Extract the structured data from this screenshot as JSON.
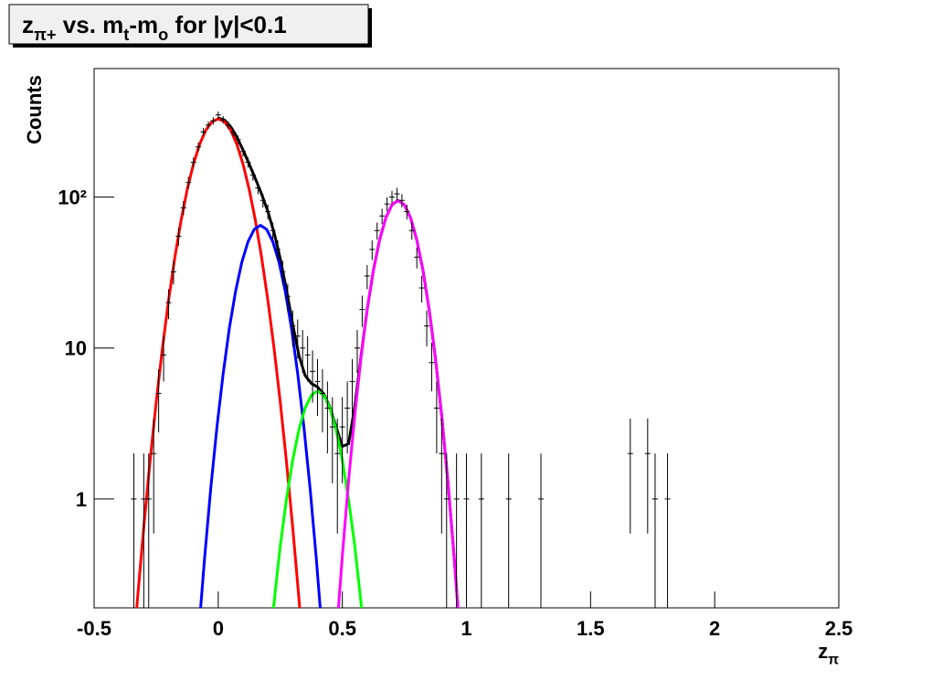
{
  "chart_data": {
    "type": "scatter",
    "title": [
      "z",
      "π+",
      " vs. m",
      "t",
      "-m",
      "o",
      " for |y|<0.1"
    ],
    "x_label": [
      "z",
      "π"
    ],
    "y_label": "Counts",
    "xlim": [
      -0.5,
      2.5
    ],
    "ylim": [
      0.19,
      710
    ],
    "log_y": true,
    "xticks": [
      -0.5,
      0,
      0.5,
      1,
      1.5,
      2,
      2.5
    ],
    "yticks": [
      1,
      10,
      {
        "value": 100,
        "label": "10²"
      }
    ],
    "color": "#000000",
    "x": [
      -0.34,
      -0.3,
      -0.28,
      -0.26,
      -0.24,
      -0.22,
      -0.2,
      -0.18,
      -0.16,
      -0.14,
      -0.12,
      -0.1,
      -0.08,
      -0.06,
      -0.04,
      -0.02,
      0,
      0.02,
      0.04,
      0.06,
      0.08,
      0.1,
      0.12,
      0.14,
      0.16,
      0.18,
      0.2,
      0.22,
      0.24,
      0.26,
      0.28,
      0.3,
      0.32,
      0.34,
      0.36,
      0.38,
      0.4,
      0.42,
      0.44,
      0.46,
      0.48,
      0.5,
      0.52,
      0.54,
      0.56,
      0.58,
      0.6,
      0.62,
      0.64,
      0.66,
      0.68,
      0.7,
      0.72,
      0.74,
      0.76,
      0.78,
      0.8,
      0.82,
      0.84,
      0.86,
      0.88,
      0.9,
      0.92,
      0.96,
      1,
      1.06,
      1.17,
      1.3,
      1.66,
      1.73,
      1.76,
      1.81
    ],
    "values": [
      1,
      1,
      1,
      2,
      5,
      9,
      20,
      32,
      55,
      85,
      125,
      170,
      215,
      270,
      300,
      320,
      350,
      325,
      300,
      270,
      240,
      200,
      170,
      140,
      115,
      95,
      80,
      60,
      45,
      32,
      22,
      14,
      12,
      10,
      9,
      7,
      6,
      5,
      4,
      3,
      2,
      3,
      4,
      6,
      10,
      18,
      30,
      45,
      60,
      75,
      90,
      100,
      105,
      95,
      80,
      60,
      40,
      25,
      14,
      8,
      4,
      2,
      1,
      1,
      1,
      1,
      1,
      1,
      2,
      2,
      1,
      1
    ],
    "errors": [
      1,
      1,
      1,
      1.41,
      2.24,
      3,
      4.47,
      5.66,
      7.42,
      9.22,
      11.18,
      13.04,
      14.66,
      16.43,
      17.32,
      17.89,
      18.71,
      18.03,
      17.32,
      16.43,
      15.49,
      14.14,
      13.04,
      11.83,
      10.72,
      9.75,
      8.94,
      7.75,
      6.71,
      5.66,
      4.69,
      3.74,
      3.46,
      3.16,
      3,
      2.65,
      2.45,
      2.24,
      2,
      1.73,
      1.41,
      1.73,
      2,
      2.45,
      3.16,
      4.24,
      5.48,
      6.71,
      7.75,
      8.66,
      9.49,
      10,
      10.25,
      9.75,
      8.94,
      7.75,
      6.32,
      5,
      3.74,
      2.83,
      2,
      1.41,
      1,
      1,
      1,
      1,
      1,
      1,
      1.41,
      1.41,
      1,
      1
    ],
    "fits": [
      {
        "color": "#000000",
        "x": [
          0,
          0.025,
          0.05,
          0.075,
          0.1,
          0.125,
          0.15,
          0.175,
          0.2,
          0.225,
          0.25,
          0.275,
          0.3,
          0.325,
          0.35,
          0.375,
          0.4,
          0.425,
          0.45,
          0.475,
          0.5,
          0.525,
          0.55,
          0.575,
          0.6,
          0.625,
          0.65,
          0.675,
          0.7,
          0.725,
          0.75,
          0.775,
          0.8,
          0.825,
          0.85,
          0.875,
          0.9,
          0.925,
          0.95,
          0.975
        ],
        "values": [
          333.6,
          323.9,
          292.9,
          249.9,
          205.0,
          165.1,
          132.0,
          104.4,
          80.2,
          58.1,
          39.1,
          24.3,
          14.4,
          8.94,
          6.59,
          5.83,
          5.52,
          4.97,
          4.05,
          3.0,
          2.23,
          2.32,
          4.08,
          8.78,
          17.98,
          32.6,
          52.0,
          72.7,
          88.9,
          95,
          88.9,
          72.7,
          52.0,
          32.6,
          17.9,
          8.57,
          3.59,
          1.32,
          0.42,
          0.119
        ]
      },
      {
        "color": "#ff0000",
        "x": [
          -0.35,
          -0.325,
          -0.3,
          -0.275,
          -0.25,
          -0.225,
          -0.2,
          -0.175,
          -0.15,
          -0.125,
          -0.1,
          -0.075,
          -0.05,
          -0.025,
          0,
          0.025,
          0.05,
          0.075,
          0.1,
          0.125,
          0.15,
          0.175,
          0.2,
          0.225,
          0.25,
          0.275,
          0.3,
          0.325,
          0.35
        ],
        "values": [
          0.069,
          0.22,
          0.65,
          1.76,
          4.37,
          9.94,
          20.7,
          39.6,
          69.6,
          112.0,
          165.2,
          223.6,
          277.6,
          316.0,
          330,
          316.0,
          277.6,
          223.6,
          165.2,
          112.0,
          69.6,
          39.6,
          20.7,
          9.94,
          4.37,
          1.76,
          0.65,
          0.22,
          0.069
        ]
      },
      {
        "color": "#0000ff",
        "x": [
          -0.08,
          -0.055,
          -0.03,
          -0.005,
          0.02,
          0.045,
          0.07,
          0.095,
          0.12,
          0.145,
          0.17,
          0.195,
          0.22,
          0.245,
          0.27,
          0.295,
          0.32,
          0.345,
          0.37,
          0.395,
          0.42
        ],
        "values": [
          0.123,
          0.405,
          1.18,
          3.01,
          6.8,
          13.6,
          23.8,
          37.0,
          50.6,
          61.1,
          65,
          61.1,
          50.6,
          37.0,
          23.8,
          13.6,
          6.8,
          3.01,
          1.18,
          0.405,
          0.123
        ]
      },
      {
        "color": "#00ff00",
        "x": [
          0.2,
          0.225,
          0.25,
          0.275,
          0.3,
          0.325,
          0.35,
          0.375,
          0.4,
          0.425,
          0.45,
          0.475,
          0.5,
          0.525,
          0.55,
          0.575,
          0.6
        ],
        "values": [
          0.077,
          0.207,
          0.49,
          1.0,
          1.81,
          2.88,
          4.0,
          4.87,
          5.2,
          4.87,
          4.0,
          2.88,
          1.81,
          1.0,
          0.49,
          0.207,
          0.077
        ]
      },
      {
        "color": "#ff00ff",
        "x": [
          0.475,
          0.5,
          0.525,
          0.55,
          0.575,
          0.6,
          0.625,
          0.65,
          0.675,
          0.7,
          0.725,
          0.75,
          0.775,
          0.8,
          0.825,
          0.85,
          0.875,
          0.9,
          0.925,
          0.95,
          0.975
        ],
        "values": [
          0.119,
          0.42,
          1.32,
          3.59,
          8.57,
          17.9,
          32.6,
          52.0,
          72.7,
          88.9,
          95,
          88.9,
          72.7,
          52.0,
          32.6,
          17.9,
          8.57,
          3.59,
          1.32,
          0.42,
          0.119
        ]
      }
    ]
  }
}
